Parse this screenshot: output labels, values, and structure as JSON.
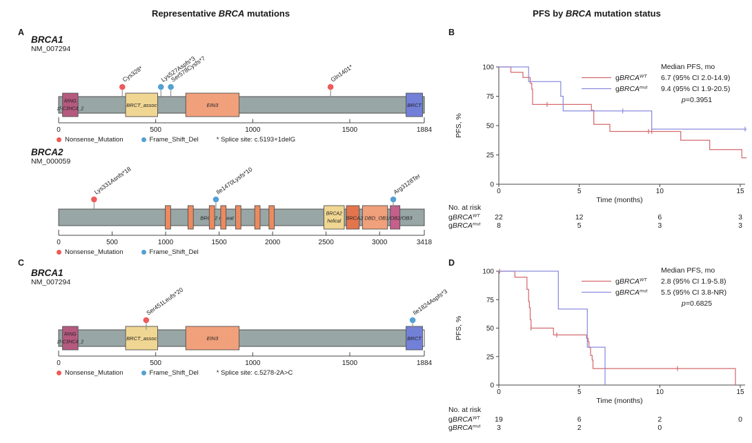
{
  "figure": {
    "left_title": {
      "pre": "Representative ",
      "italic": "BRCA",
      "post": " mutations"
    },
    "right_title": {
      "pre": "PFS by ",
      "italic": "BRCA",
      "post": " mutation status"
    }
  },
  "colors": {
    "nonsense": "#ef5a5a",
    "frameshift": "#54a0d4",
    "bar": "#98a6a5",
    "bar_border": "#4f4f4f",
    "wt": "#d46a6e",
    "mut": "#8a8cdd",
    "axis": "#444444",
    "text": "#1a1a1a",
    "stick": "#8a8a8a"
  },
  "chart_data": [
    {
      "type": "lollipop",
      "panel": "A",
      "gene": "BRCA1",
      "transcript": "NM_007294",
      "length": 1884,
      "axis_ticks": [
        0,
        500,
        1000,
        1500,
        1884
      ],
      "domains": [
        {
          "name": "RING",
          "labels": [
            "RING",
            "zf-C3HC4_2"
          ],
          "start": 20,
          "end": 100,
          "color": "#b5597f"
        },
        {
          "name": "BRCT_assoc",
          "labels": [
            "BRCT_assoc"
          ],
          "start": 345,
          "end": 510,
          "color": "#f0d693"
        },
        {
          "name": "EIN3",
          "labels": [
            "EIN3"
          ],
          "start": 655,
          "end": 930,
          "color": "#f0a07b"
        },
        {
          "name": "BRCT",
          "labels": [
            "BRCT"
          ],
          "start": 1790,
          "end": 1875,
          "color": "#7280d8"
        }
      ],
      "mutations": [
        {
          "label": "Cys328*",
          "pos": 328,
          "type": "Nonsense_Mutation"
        },
        {
          "label": "Lys527Aspfs*3",
          "pos": 527,
          "type": "Frame_Shift_Del"
        },
        {
          "label": "Ser578Cysfs*7",
          "pos": 578,
          "type": "Frame_Shift_Del"
        },
        {
          "label": "Gln1401*",
          "pos": 1401,
          "type": "Nonsense_Mutation"
        }
      ],
      "legend": [
        {
          "label": "Nonsense_Mutation",
          "type": "Nonsense_Mutation"
        },
        {
          "label": "Frame_Shift_Del",
          "type": "Frame_Shift_Del"
        }
      ],
      "splice_note": "* Splice site: c.5193+1delG"
    },
    {
      "type": "lollipop",
      "panel": null,
      "gene": "BRCA2",
      "transcript": "NM_000059",
      "length": 3418,
      "axis_ticks": [
        0,
        500,
        1000,
        1500,
        2000,
        2500,
        3000,
        3418
      ],
      "domains": [
        {
          "name": "repeat-1",
          "labels": [],
          "start": 997,
          "end": 1047,
          "color": "#ec8a5f"
        },
        {
          "name": "repeat-2",
          "labels": [],
          "start": 1209,
          "end": 1259,
          "color": "#ec8a5f"
        },
        {
          "name": "repeat-3",
          "labels": [],
          "start": 1408,
          "end": 1458,
          "color": "#ec8a5f"
        },
        {
          "name": "repeat-4",
          "labels": [],
          "start": 1515,
          "end": 1565,
          "color": "#ec8a5f"
        },
        {
          "name": "repeat-5",
          "labels": [],
          "start": 1654,
          "end": 1704,
          "color": "#ec8a5f"
        },
        {
          "name": "repeat-6",
          "labels": [],
          "start": 1833,
          "end": 1883,
          "color": "#ec8a5f"
        },
        {
          "name": "repeat-7",
          "labels": [],
          "start": 1966,
          "end": 2016,
          "color": "#ec8a5f"
        },
        {
          "name": "BRCA2-helical",
          "labels": [
            "BRCA2",
            "helical"
          ],
          "start": 2480,
          "end": 2670,
          "color": "#f0d693"
        },
        {
          "name": "DBD-OB1",
          "labels": [],
          "start": 2690,
          "end": 2810,
          "color": "#e4744e"
        },
        {
          "name": "DBD-OB2",
          "labels": [],
          "start": 2840,
          "end": 3075,
          "color": "#f0a07b"
        },
        {
          "name": "DBD-OB3",
          "labels": [],
          "start": 3100,
          "end": 3190,
          "color": "#c4608b"
        }
      ],
      "bar_label": {
        "text": "BRCA2 repeat",
        "pos": 1480
      },
      "overlay_label": {
        "text": "BRCA2 DBD_OB1/OB2/OB3",
        "pos": 2995
      },
      "mutations": [
        {
          "label": "Lys331Asnfs*18",
          "pos": 331,
          "type": "Nonsense_Mutation"
        },
        {
          "label": "Ile1470Lysfs*10",
          "pos": 1470,
          "type": "Frame_Shift_Del"
        },
        {
          "label": "Arg3128Ter",
          "pos": 3128,
          "type": "Frame_Shift_Del"
        }
      ],
      "legend": [
        {
          "label": "Nonsense_Mutation",
          "type": "Nonsense_Mutation"
        },
        {
          "label": "Frame_Shift_Del",
          "type": "Frame_Shift_Del"
        }
      ],
      "splice_note": null
    },
    {
      "type": "lollipop",
      "panel": "C",
      "gene": "BRCA1",
      "transcript": "NM_007294",
      "length": 1884,
      "white_end": 1855,
      "axis_ticks": [
        0,
        500,
        1000,
        1500,
        1884
      ],
      "domains": [
        {
          "name": "RING",
          "labels": [
            "RING",
            "zf-C3HC4_2"
          ],
          "start": 20,
          "end": 100,
          "color": "#b5597f"
        },
        {
          "name": "BRCT_assoc",
          "labels": [
            "BRCT_assoc"
          ],
          "start": 345,
          "end": 510,
          "color": "#f0d693"
        },
        {
          "name": "EIN3",
          "labels": [
            "EIN3"
          ],
          "start": 655,
          "end": 930,
          "color": "#f0a07b"
        },
        {
          "name": "BRCT",
          "labels": [
            "BRCT"
          ],
          "start": 1790,
          "end": 1875,
          "color": "#7280d8"
        }
      ],
      "mutations": [
        {
          "label": "Ser451Leufs*20",
          "pos": 451,
          "type": "Nonsense_Mutation"
        },
        {
          "label": "Ile1824Aspfs*3",
          "pos": 1824,
          "type": "Frame_Shift_Del"
        }
      ],
      "legend": [
        {
          "label": "Nonsense_Mutation",
          "type": "Nonsense_Mutation"
        },
        {
          "label": "Frame_Shift_Del",
          "type": "Frame_Shift_Del"
        }
      ],
      "splice_note": "* Splice site: c.5278-2A>C"
    },
    {
      "type": "line",
      "panel": "B",
      "xlabel": "Time (months)",
      "ylabel": "PFS, %",
      "xticks": [
        0,
        5,
        10,
        15
      ],
      "yticks": [
        0,
        25,
        50,
        75,
        100
      ],
      "xlim": [
        0,
        15.5
      ],
      "ylim": [
        0,
        100
      ],
      "legend": {
        "header": "Median PFS, mo",
        "pvalue": "p=0.3951",
        "rows": [
          {
            "prefix": "g",
            "gene": "BRCA",
            "sup": "WT",
            "value": "6.7 (95% CI 2.0-14.9)",
            "color_key": "wt"
          },
          {
            "prefix": "g",
            "gene": "BRCA",
            "sup": "mut",
            "value": "9.4 (95% CI 1.9-20.5)",
            "color_key": "mut"
          }
        ]
      },
      "series": [
        {
          "name": "gBRCA-WT",
          "color_key": "wt",
          "points": [
            [
              0,
              100
            ],
            [
              0.75,
              100
            ],
            [
              0.75,
              95.5
            ],
            [
              1.5,
              95.5
            ],
            [
              1.5,
              91
            ],
            [
              1.95,
              91
            ],
            [
              1.95,
              86
            ],
            [
              2.05,
              86
            ],
            [
              2.05,
              81
            ],
            [
              2.1,
              81
            ],
            [
              2.1,
              68
            ],
            [
              5.75,
              68
            ],
            [
              5.75,
              63
            ],
            [
              5.9,
              63
            ],
            [
              5.9,
              51
            ],
            [
              6.9,
              51
            ],
            [
              6.9,
              45
            ],
            [
              11.3,
              45
            ],
            [
              11.3,
              37.5
            ],
            [
              13.1,
              37.5
            ],
            [
              13.1,
              29.5
            ],
            [
              15.1,
              29.5
            ],
            [
              15.1,
              22.5
            ],
            [
              15.4,
              22.5
            ]
          ],
          "censors": [
            [
              3.0,
              68
            ],
            [
              9.3,
              45
            ],
            [
              9.5,
              45
            ]
          ]
        },
        {
          "name": "gBRCA-mut",
          "color_key": "mut",
          "points": [
            [
              0,
              100
            ],
            [
              1.85,
              100
            ],
            [
              1.85,
              87.5
            ],
            [
              3.85,
              87.5
            ],
            [
              3.85,
              75
            ],
            [
              4.0,
              75
            ],
            [
              4.0,
              62.5
            ],
            [
              9.5,
              62.5
            ],
            [
              9.5,
              47
            ],
            [
              15.4,
              47
            ]
          ],
          "censors": [
            [
              7.7,
              62.5
            ],
            [
              15.3,
              47
            ]
          ]
        }
      ],
      "risk_table": {
        "title": "No. at risk",
        "rows": [
          {
            "prefix": "g",
            "gene": "BRCA",
            "sup": "WT",
            "counts": [
              22,
              12,
              6,
              3
            ]
          },
          {
            "prefix": "g",
            "gene": "BRCA",
            "sup": "mut",
            "counts": [
              8,
              5,
              3,
              3
            ]
          }
        ]
      }
    },
    {
      "type": "line",
      "panel": "D",
      "xlabel": "Time (months)",
      "ylabel": "PFS, %",
      "xticks": [
        0,
        5,
        10,
        15
      ],
      "yticks": [
        0,
        25,
        50,
        75,
        100
      ],
      "xlim": [
        0,
        15.5
      ],
      "ylim": [
        0,
        100
      ],
      "legend": {
        "header": "Median PFS, mo",
        "pvalue": "p=0.6825",
        "rows": [
          {
            "prefix": "g",
            "gene": "BRCA",
            "sup": "WT",
            "value": "2.8 (95% CI 1.9-5.8)",
            "color_key": "wt"
          },
          {
            "prefix": "g",
            "gene": "BRCA",
            "sup": "mut",
            "value": "5.5 (95% CI 3.8-NR)",
            "color_key": "mut"
          }
        ]
      },
      "series": [
        {
          "name": "gBRCA-WT",
          "color_key": "wt",
          "points": [
            [
              0,
              100
            ],
            [
              1.0,
              100
            ],
            [
              1.0,
              94.7
            ],
            [
              1.75,
              94.7
            ],
            [
              1.75,
              84
            ],
            [
              1.85,
              84
            ],
            [
              1.85,
              73.5
            ],
            [
              1.9,
              73.5
            ],
            [
              1.9,
              68
            ],
            [
              1.95,
              68
            ],
            [
              1.95,
              57.5
            ],
            [
              2.0,
              57.5
            ],
            [
              2.0,
              50
            ],
            [
              3.4,
              50
            ],
            [
              3.4,
              44
            ],
            [
              5.45,
              44
            ],
            [
              5.45,
              41
            ],
            [
              5.55,
              41
            ],
            [
              5.55,
              38
            ],
            [
              5.6,
              38
            ],
            [
              5.6,
              33
            ],
            [
              5.7,
              33
            ],
            [
              5.7,
              26
            ],
            [
              5.8,
              26
            ],
            [
              5.8,
              22
            ],
            [
              5.85,
              22
            ],
            [
              5.85,
              14.5
            ],
            [
              14.7,
              14.5
            ],
            [
              14.7,
              0
            ]
          ],
          "censors": [
            [
              0.05,
              100
            ],
            [
              2.0,
              50
            ],
            [
              3.6,
              44
            ],
            [
              11.1,
              14.5
            ]
          ]
        },
        {
          "name": "gBRCA-mut",
          "color_key": "mut",
          "points": [
            [
              0,
              100
            ],
            [
              3.7,
              100
            ],
            [
              3.7,
              66.7
            ],
            [
              5.5,
              66.7
            ],
            [
              5.5,
              33.3
            ],
            [
              6.6,
              33.3
            ],
            [
              6.6,
              0
            ]
          ],
          "censors": []
        }
      ],
      "risk_table": {
        "title": "No. at risk",
        "rows": [
          {
            "prefix": "g",
            "gene": "BRCA",
            "sup": "WT",
            "counts": [
              19,
              6,
              2,
              0
            ]
          },
          {
            "prefix": "g",
            "gene": "BRCA",
            "sup": "mut",
            "counts": [
              3,
              2,
              0
            ]
          }
        ]
      }
    }
  ]
}
